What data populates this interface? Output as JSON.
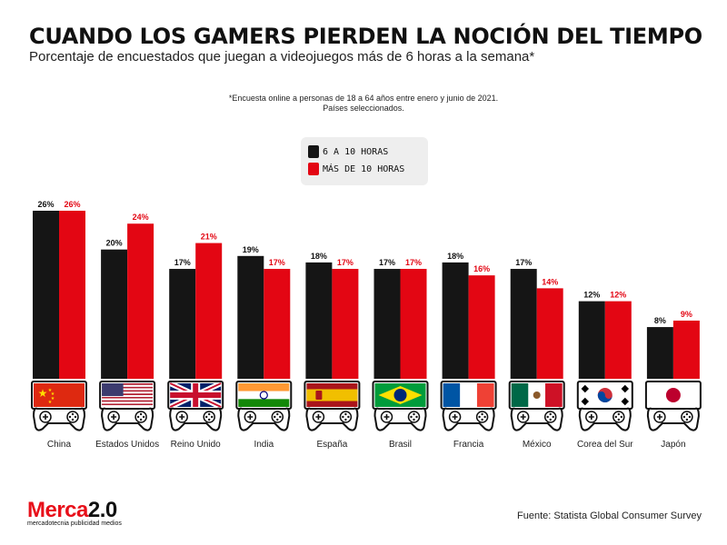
{
  "header": {
    "title": "CUANDO LOS GAMERS PIERDEN LA NOCIÓN DEL TIEMPO",
    "subtitle": "Porcentaje de encuestados que juegan a videojuegos más de 6 horas a la semana*",
    "note_line1": "*Encuesta online a personas de 18 a 64 años entre enero y junio de 2021.",
    "note_line2": "Países seleccionados."
  },
  "colors": {
    "series1": "#151515",
    "series2": "#e30613",
    "legend_bg": "#eeeeee"
  },
  "chart_data": {
    "type": "bar",
    "categories": [
      "China",
      "Estados Unidos",
      "Reino Unido",
      "India",
      "España",
      "Brasil",
      "Francia",
      "México",
      "Corea del Sur",
      "Japón"
    ],
    "series": [
      {
        "name": "6 A 10 HORAS",
        "values": [
          26,
          20,
          17,
          19,
          18,
          17,
          18,
          17,
          12,
          8
        ],
        "labels": [
          "26%",
          "20%",
          "17%",
          "19%",
          "18%",
          "17%",
          "18%",
          "17%",
          "12%",
          "8%"
        ]
      },
      {
        "name": "MÁS DE 10 HORAS",
        "values": [
          26,
          24,
          21,
          17,
          17,
          17,
          16,
          14,
          12,
          9
        ],
        "labels": [
          "26%",
          "24%",
          "21%",
          "17%",
          "17%",
          "17%",
          "16%",
          "14%",
          "12%",
          "9%"
        ]
      }
    ],
    "ylim": [
      0,
      26
    ],
    "legend_position": "top-center"
  },
  "flags": [
    "china-flag-icon",
    "usa-flag-icon",
    "uk-flag-icon",
    "india-flag-icon",
    "spain-flag-icon",
    "brazil-flag-icon",
    "france-flag-icon",
    "mexico-flag-icon",
    "korea-flag-icon",
    "japan-flag-icon"
  ],
  "footer": {
    "brand_main": "Merca",
    "brand_num": "2.0",
    "brand_sub": "mercadotecnia publicidad medios",
    "source": "Fuente: Statista Global Consumer Survey"
  }
}
